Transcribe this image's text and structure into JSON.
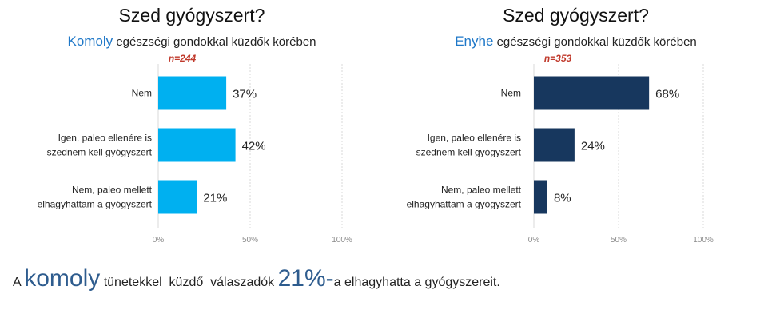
{
  "colors": {
    "left_bar": "#00b0f0",
    "right_bar": "#17375e",
    "highlight": "#1f78c8",
    "n_label": "#c0392b",
    "grid": "#d9d9d9",
    "summary_highlight": "#2e5c8e"
  },
  "chart_data": [
    {
      "type": "bar",
      "orientation": "horizontal",
      "title": "Szed gyógyszert?",
      "subtitle_highlight": "Komoly",
      "subtitle_rest": " egészségi gondokkal küzdők körében",
      "n": "n=244",
      "categories": [
        "Nem",
        "Igen, paleo ellenére is szednem kell gyógyszert",
        "Nem, paleo mellett elhagyhattam a gyógyszert"
      ],
      "category_lines": [
        [
          "Nem"
        ],
        [
          "Igen, paleo ellenére is",
          "szednem kell gyógyszert"
        ],
        [
          "Nem, paleo mellett",
          "elhagyhattam a gyógyszert"
        ]
      ],
      "values": [
        37,
        42,
        21
      ],
      "value_labels": [
        "37%",
        "42%",
        "21%"
      ],
      "xlim": [
        0,
        100
      ],
      "ticks": [
        0,
        50,
        100
      ],
      "tick_labels": [
        "0%",
        "50%",
        "100%"
      ],
      "grid": true
    },
    {
      "type": "bar",
      "orientation": "horizontal",
      "title": "Szed gyógyszert?",
      "subtitle_highlight": "Enyhe",
      "subtitle_rest": " egészségi gondokkal küzdők körében",
      "n": "n=353",
      "categories": [
        "Nem",
        "Igen, paleo ellenére is szednem kell gyógyszert",
        "Nem, paleo mellett elhagyhattam a gyógyszert"
      ],
      "category_lines": [
        [
          "Nem"
        ],
        [
          "Igen, paleo ellenére is",
          "szednem kell gyógyszert"
        ],
        [
          "Nem, paleo mellett",
          "elhagyhattam a gyógyszert"
        ]
      ],
      "values": [
        68,
        24,
        8
      ],
      "value_labels": [
        "68%",
        "24%",
        "8%"
      ],
      "xlim": [
        0,
        100
      ],
      "ticks": [
        0,
        50,
        100
      ],
      "tick_labels": [
        "0%",
        "50%",
        "100%"
      ],
      "grid": true
    }
  ],
  "summary": {
    "part1": "A ",
    "highlight1": "komoly",
    "part2": " tünetekkel  küzdő  válaszadók ",
    "highlight2": "21%-",
    "part3": "a elhagyhatta a gyógyszereit."
  }
}
